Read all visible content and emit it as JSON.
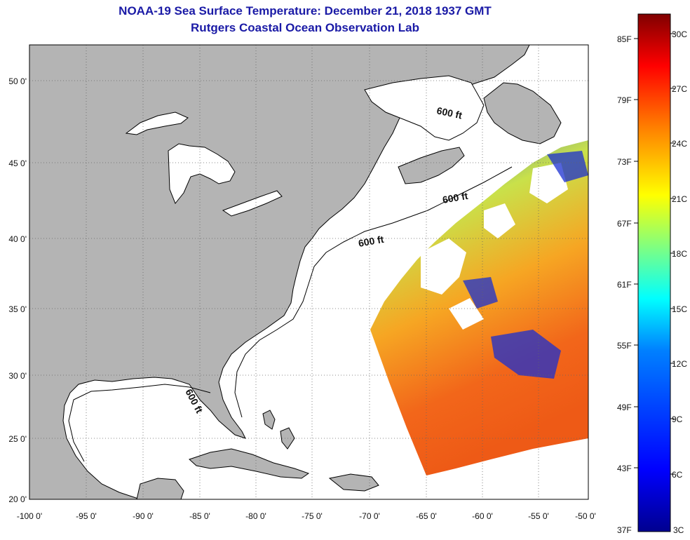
{
  "header": {
    "title": "NOAA-19 Sea Surface Temperature:  December 21, 2018 1937 GMT",
    "subtitle": "Rutgers Coastal Ocean Observation Lab"
  },
  "map": {
    "lat_labels": [
      "50 0'",
      "45 0'",
      "40 0'",
      "35 0'",
      "30 0'",
      "25 0'",
      "20 0'"
    ],
    "lon_labels": [
      "-100 0'",
      "-95 0'",
      "-90 0'",
      "-85 0'",
      "-80 0'",
      "-75 0'",
      "-70 0'",
      "-65 0'",
      "-60 0'",
      "-55 0'",
      "-50 0'"
    ],
    "contour_label": "600 ft",
    "land_color": "#b4b4b4",
    "cloud_color": "#ffffff"
  },
  "colorbar": {
    "fahrenheit_labels": [
      "85F",
      "79F",
      "73F",
      "67F",
      "61F",
      "55F",
      "49F",
      "43F",
      "37F"
    ],
    "celsius_labels": [
      "30C",
      "27C",
      "24C",
      "21C",
      "18C",
      "15C",
      "12C",
      "9C",
      "6C",
      "3C"
    ],
    "colors": [
      "#800000",
      "#ff0000",
      "#ff8000",
      "#ffff00",
      "#80ff80",
      "#00ffff",
      "#0080ff",
      "#0000ff",
      "#00008f"
    ]
  }
}
